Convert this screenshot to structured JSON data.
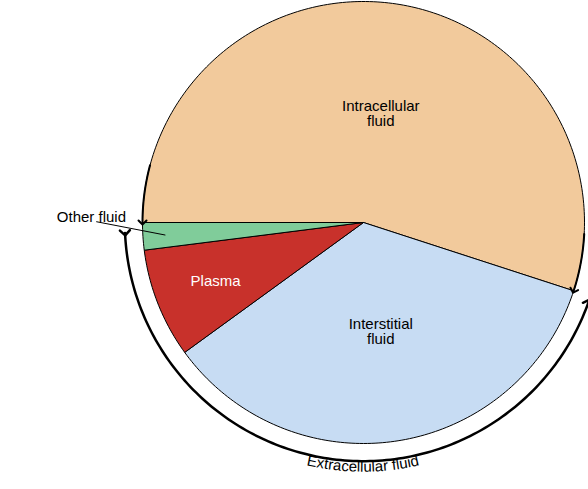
{
  "chart_data": {
    "type": "pie",
    "categories": [
      "Intracellular fluid",
      "Interstitial fluid",
      "Plasma",
      "Other fluid"
    ],
    "values": [
      55,
      35,
      8,
      2
    ],
    "colors": [
      "#f2ca9c",
      "#c7dcf3",
      "#c8312b",
      "#80cc9a"
    ],
    "annotations": [
      {
        "text": "Extracellular fluid",
        "categories": [
          "Interstitial fluid",
          "Plasma",
          "Other fluid"
        ]
      }
    ]
  }
}
